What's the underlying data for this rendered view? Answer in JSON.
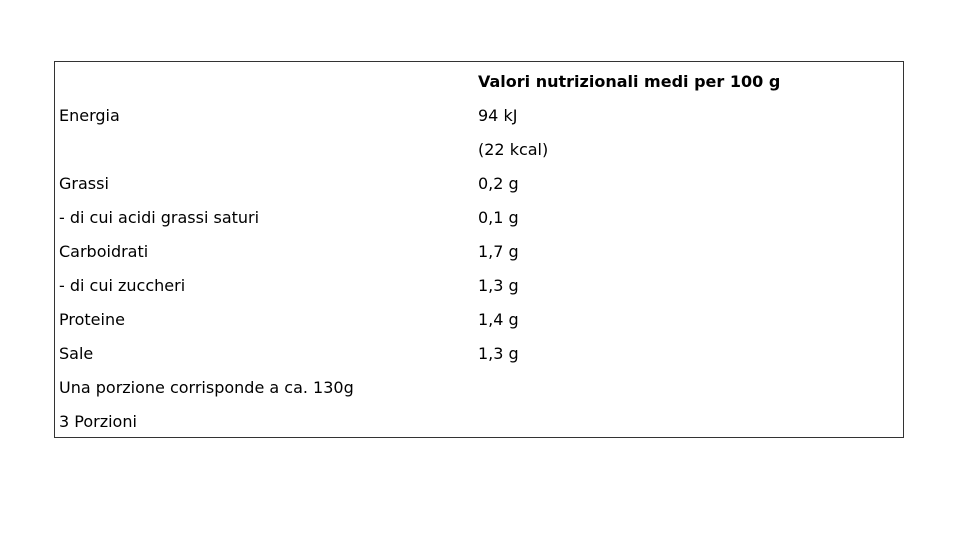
{
  "table": {
    "header": [
      "",
      "Valori nutrizionali medi per 100 g"
    ],
    "rows": [
      [
        "Energia",
        "94 kJ"
      ],
      [
        "",
        "(22 kcal)"
      ],
      [
        "Grassi",
        "0,2 g"
      ],
      [
        "- di cui acidi grassi saturi",
        "0,1 g"
      ],
      [
        "Carboidrati",
        "1,7 g"
      ],
      [
        "- di cui zuccheri",
        "1,3 g"
      ],
      [
        "Proteine",
        "1,4 g"
      ],
      [
        "Sale",
        "1,3 g"
      ],
      [
        "Una porzione corrisponde a ca. 130g",
        ""
      ],
      [
        "3 Porzioni",
        ""
      ]
    ]
  }
}
